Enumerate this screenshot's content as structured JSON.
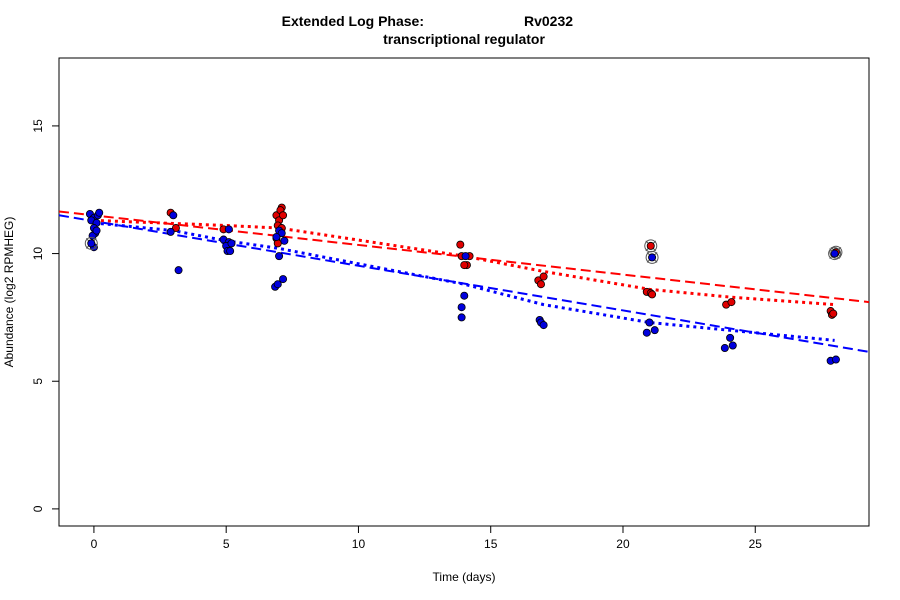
{
  "chart_data": {
    "type": "scatter",
    "title_line1_left": "Extended Log Phase:",
    "title_line1_right": "Rv0232",
    "title_line2": "transcriptional regulator",
    "xlabel": "Time  (days)",
    "ylabel": "Abundance  (log2 RPMHEG)",
    "xlim": [
      -1.32,
      29.3
    ],
    "ylim": [
      -0.67,
      17.66
    ],
    "xticks": [
      0,
      5,
      10,
      15,
      20,
      25
    ],
    "yticks": [
      0,
      5,
      10,
      15
    ],
    "grid": false,
    "colors": {
      "red": "#ff0000",
      "blue": "#0000ff",
      "red_fill": "#e00000",
      "blue_fill": "#0000dd"
    },
    "series": [
      {
        "color": "red",
        "points": [
          [
            0.0,
            11.4
          ],
          [
            2.9,
            11.6
          ],
          [
            3.1,
            11.0
          ],
          [
            4.9,
            10.95
          ],
          [
            6.9,
            11.5
          ],
          [
            7.0,
            11.3
          ],
          [
            7.1,
            11.8
          ],
          [
            7.05,
            11.7
          ],
          [
            6.95,
            11.1
          ],
          [
            7.1,
            11.0
          ],
          [
            7.15,
            11.5
          ],
          [
            6.9,
            10.6
          ],
          [
            6.95,
            10.4
          ],
          [
            13.85,
            10.35
          ],
          [
            13.9,
            9.9
          ],
          [
            14.1,
            9.55
          ],
          [
            14.0,
            9.55
          ],
          [
            14.2,
            9.9
          ],
          [
            16.8,
            8.95
          ],
          [
            16.9,
            8.8
          ],
          [
            17.0,
            9.1
          ],
          [
            20.9,
            8.5
          ],
          [
            21.05,
            8.45
          ],
          [
            21.1,
            8.4
          ],
          [
            23.9,
            8.0
          ],
          [
            24.1,
            8.1
          ],
          [
            27.85,
            7.75
          ],
          [
            27.9,
            7.6
          ],
          [
            27.95,
            7.65
          ]
        ],
        "highlighted": [
          [
            21.05,
            10.3
          ],
          [
            28.05,
            10.05
          ]
        ],
        "dashed_fit": [
          [
            -1.32,
            11.65
          ],
          [
            29.3,
            8.1
          ]
        ],
        "dotted_trend": [
          [
            0,
            11.3
          ],
          [
            5,
            11.1
          ],
          [
            7,
            11.0
          ],
          [
            14,
            9.9
          ],
          [
            17,
            9.3
          ],
          [
            21,
            8.6
          ],
          [
            24,
            8.3
          ],
          [
            28,
            8.0
          ]
        ]
      },
      {
        "color": "blue",
        "points": [
          [
            -0.15,
            11.55
          ],
          [
            0,
            11.4
          ],
          [
            0.15,
            11.5
          ],
          [
            0.2,
            11.6
          ],
          [
            -0.1,
            11.3
          ],
          [
            0.1,
            11.2
          ],
          [
            0,
            11.0
          ],
          [
            0.05,
            10.8
          ],
          [
            -0.05,
            10.7
          ],
          [
            0.1,
            10.9
          ],
          [
            0,
            10.25
          ],
          [
            3.0,
            11.5
          ],
          [
            2.9,
            10.85
          ],
          [
            3.2,
            9.35
          ],
          [
            4.9,
            10.55
          ],
          [
            5.1,
            10.45
          ],
          [
            5.0,
            10.3
          ],
          [
            5.2,
            10.4
          ],
          [
            5.05,
            10.1
          ],
          [
            5.15,
            10.1
          ],
          [
            5.1,
            10.95
          ],
          [
            7.0,
            10.9
          ],
          [
            7.1,
            10.8
          ],
          [
            6.9,
            10.65
          ],
          [
            7.2,
            10.5
          ],
          [
            7.0,
            9.9
          ],
          [
            6.85,
            8.7
          ],
          [
            6.95,
            8.8
          ],
          [
            7.15,
            9.0
          ],
          [
            13.9,
            7.5
          ],
          [
            13.9,
            7.9
          ],
          [
            14.0,
            8.35
          ],
          [
            14.05,
            9.9
          ],
          [
            16.85,
            7.4
          ],
          [
            16.9,
            7.3
          ],
          [
            17.0,
            7.2
          ],
          [
            20.9,
            6.9
          ],
          [
            21.0,
            7.3
          ],
          [
            21.2,
            7.0
          ],
          [
            23.85,
            6.3
          ],
          [
            24.05,
            6.7
          ],
          [
            24.15,
            6.4
          ],
          [
            27.85,
            5.8
          ],
          [
            28.05,
            5.85
          ]
        ],
        "highlighted": [
          [
            -0.1,
            10.4
          ],
          [
            21.1,
            9.85
          ],
          [
            28.0,
            10.0
          ]
        ],
        "dashed_fit": [
          [
            -1.32,
            11.5
          ],
          [
            29.3,
            6.15
          ]
        ],
        "dotted_trend": [
          [
            0,
            11.2
          ],
          [
            3,
            10.9
          ],
          [
            5,
            10.5
          ],
          [
            7,
            10.2
          ],
          [
            14,
            8.8
          ],
          [
            17,
            8.0
          ],
          [
            21,
            7.3
          ],
          [
            24,
            7.0
          ],
          [
            28,
            6.6
          ]
        ]
      }
    ]
  }
}
